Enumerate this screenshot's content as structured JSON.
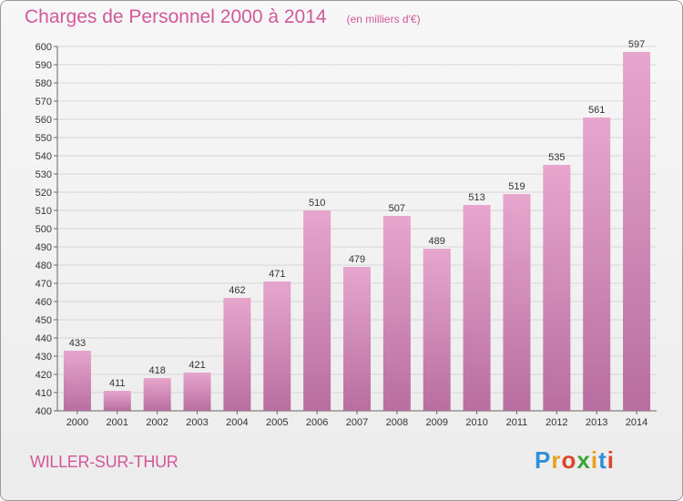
{
  "header": {
    "title": "Charges de Personnel 2000 à 2014",
    "subtitle": "(en milliers d'€)"
  },
  "footer": {
    "location": "WILLER-SUR-THUR",
    "brand": "Proxiti",
    "brand_letters": [
      {
        "ch": "P",
        "color": "#2f8fd8"
      },
      {
        "ch": "r",
        "color": "#e8a020"
      },
      {
        "ch": "o",
        "color": "#e0442c"
      },
      {
        "ch": "x",
        "color": "#3aa53a"
      },
      {
        "ch": "i",
        "color": "#e8a020"
      },
      {
        "ch": "t",
        "color": "#2f8fd8"
      },
      {
        "ch": "i",
        "color": "#e0442c"
      }
    ]
  },
  "colors": {
    "bar_top": "#e7a6cd",
    "bar_bottom": "#b86ea0",
    "accent": "#d2589a",
    "grid": "#d6d6d6"
  },
  "chart_data": {
    "type": "bar",
    "title": "Charges de Personnel 2000 à 2014",
    "subtitle": "(en milliers d'€)",
    "xlabel": "",
    "ylabel": "",
    "categories": [
      "2000",
      "2001",
      "2002",
      "2003",
      "2004",
      "2005",
      "2006",
      "2007",
      "2008",
      "2009",
      "2010",
      "2011",
      "2012",
      "2013",
      "2014"
    ],
    "values": [
      433,
      411,
      418,
      421,
      462,
      471,
      510,
      479,
      507,
      489,
      513,
      519,
      535,
      561,
      597
    ],
    "ylim": [
      400,
      600
    ],
    "ytick_step": 10,
    "grid": true,
    "data_labels": true
  }
}
